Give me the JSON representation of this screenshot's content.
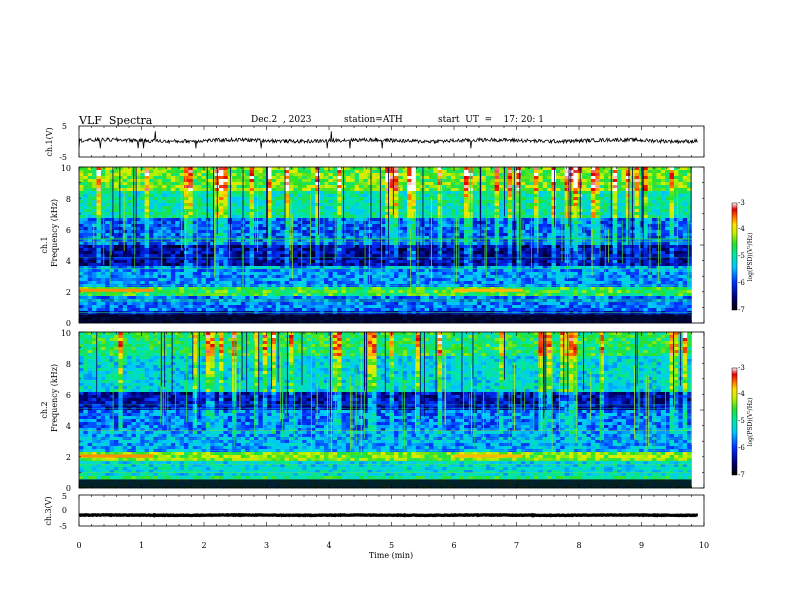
{
  "header": {
    "title": "VLF  Spectra",
    "date": "Dec.2  , 2023",
    "station": "station=ATH",
    "start_ut": "start  UT  =    17: 20: 1"
  },
  "chart_data": [
    {
      "type": "line",
      "panel": "ch1-waveform",
      "ylabel": "ch.1(V)",
      "y_ticks": [
        "5",
        "-5"
      ],
      "ylim": [
        -5,
        5
      ],
      "xlim": [
        0,
        10
      ],
      "trace_level": 0.3,
      "trace_noise": 0.6,
      "spike_count": 12,
      "line_color": "#000000"
    },
    {
      "type": "heatmap",
      "panel": "ch1-spectrogram",
      "ylabel_top": "ch.1",
      "ylabel": "Frequency  (kHz)",
      "y_ticks": [
        "0",
        "2",
        "4",
        "6",
        "8",
        "10"
      ],
      "ylim": [
        0,
        10
      ],
      "xlim": [
        0,
        10
      ],
      "data_end_min": 9.8,
      "colorbar": {
        "label": "log(PSD)(V²/Hz)",
        "ticks": [
          "-3",
          "-4",
          "-5",
          "-6",
          "-7"
        ],
        "range": [
          -7,
          -3
        ]
      },
      "bands_khz": [
        {
          "f": [
            0.0,
            0.8
          ],
          "level": -6.2
        },
        {
          "f": [
            0.8,
            1.8
          ],
          "level": -5.7
        },
        {
          "f": [
            1.8,
            2.4
          ],
          "level": -4.6
        },
        {
          "f": [
            2.4,
            3.6
          ],
          "level": -5.6
        },
        {
          "f": [
            3.6,
            5.0
          ],
          "level": -6.4
        },
        {
          "f": [
            5.0,
            6.8
          ],
          "level": -5.8
        },
        {
          "f": [
            6.8,
            8.5
          ],
          "level": -5.0
        },
        {
          "f": [
            8.5,
            10.0
          ],
          "level": -4.4
        }
      ],
      "features": [
        {
          "kind": "tone",
          "f_khz": 2.1,
          "t_min": [
            0.0,
            1.2
          ],
          "level": -3.6
        },
        {
          "kind": "tone",
          "f_khz": 2.1,
          "t_min": [
            6.0,
            7.1
          ],
          "level": -3.7
        }
      ]
    },
    {
      "type": "heatmap",
      "panel": "ch2-spectrogram",
      "ylabel_top": "ch.2",
      "ylabel": "Frequency  (kHz)",
      "y_ticks": [
        "0",
        "2",
        "4",
        "6",
        "8",
        "10"
      ],
      "ylim": [
        0,
        10
      ],
      "xlim": [
        0,
        10
      ],
      "data_end_min": 9.8,
      "colorbar": {
        "label": "log(PSD)(V²/Hz)",
        "ticks": [
          "-3",
          "-4",
          "-5",
          "-6",
          "-7"
        ],
        "range": [
          -7,
          -3
        ]
      },
      "bands_khz": [
        {
          "f": [
            0.0,
            0.8
          ],
          "level": -4.8
        },
        {
          "f": [
            0.8,
            1.8
          ],
          "level": -5.2
        },
        {
          "f": [
            1.8,
            2.4
          ],
          "level": -4.3
        },
        {
          "f": [
            2.4,
            3.6
          ],
          "level": -5.5
        },
        {
          "f": [
            3.6,
            5.0
          ],
          "level": -5.7
        },
        {
          "f": [
            5.0,
            6.2
          ],
          "level": -6.3
        },
        {
          "f": [
            6.2,
            8.5
          ],
          "level": -5.2
        },
        {
          "f": [
            8.5,
            10.0
          ],
          "level": -4.7
        }
      ],
      "features": [
        {
          "kind": "tone",
          "f_khz": 2.05,
          "t_min": [
            0.0,
            1.2
          ],
          "level": -3.6
        },
        {
          "kind": "tone",
          "f_khz": 2.05,
          "t_min": [
            6.0,
            7.1
          ],
          "level": -3.7
        }
      ]
    },
    {
      "type": "line",
      "panel": "ch3-waveform",
      "ylabel": "ch.3(V)",
      "y_ticks": [
        "5",
        "0",
        "-5"
      ],
      "ylim": [
        -5,
        5
      ],
      "xlim": [
        0,
        10
      ],
      "trace_level": -1.5,
      "trace_noise": 0.1,
      "spike_count": 0,
      "line_color": "#000000",
      "xlabel": "Time  (min)",
      "x_ticks": [
        "0",
        "1",
        "2",
        "3",
        "4",
        "5",
        "6",
        "7",
        "8",
        "9",
        "10"
      ]
    }
  ]
}
